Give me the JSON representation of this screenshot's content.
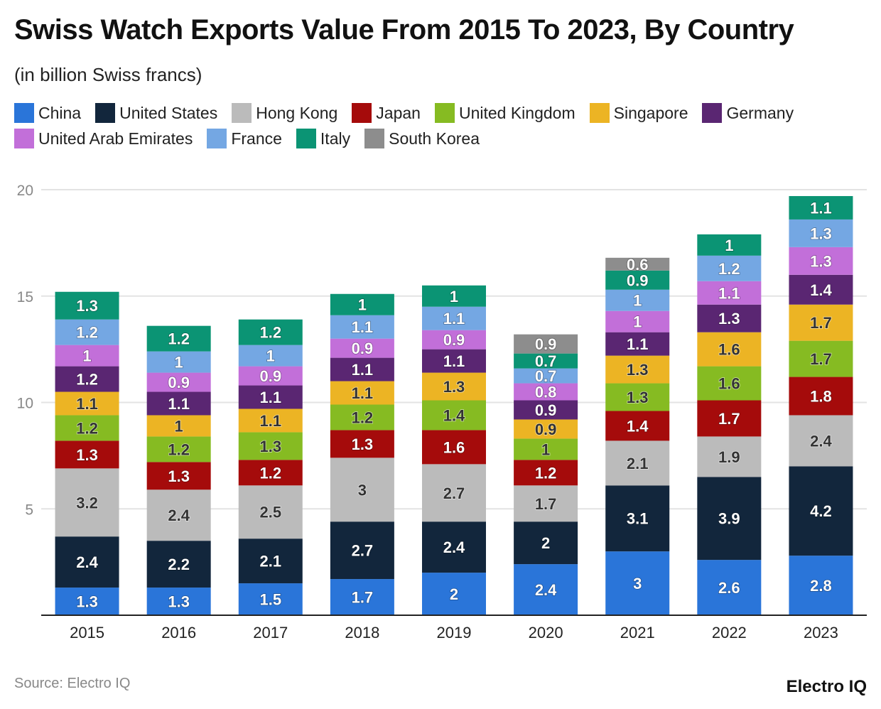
{
  "chart_data": {
    "type": "bar",
    "stacked": true,
    "title": "Swiss Watch Exports Value From 2015 To 2023, By Country",
    "subtitle": "(in billion Swiss francs)",
    "categories": [
      "2015",
      "2016",
      "2017",
      "2018",
      "2019",
      "2020",
      "2021",
      "2022",
      "2023"
    ],
    "ylim": [
      0,
      20
    ],
    "yticks": [
      5,
      10,
      15,
      20
    ],
    "grid": true,
    "legend_position": "top",
    "series": [
      {
        "name": "China",
        "color": "#2a75d9",
        "values": [
          1.3,
          1.3,
          1.5,
          1.7,
          2,
          2.4,
          3,
          2.6,
          2.8
        ]
      },
      {
        "name": "United States",
        "color": "#12263c",
        "values": [
          2.4,
          2.2,
          2.1,
          2.7,
          2.4,
          2,
          3.1,
          3.9,
          4.2
        ]
      },
      {
        "name": "Hong Kong",
        "color": "#bbbbbb",
        "values": [
          3.2,
          2.4,
          2.5,
          3,
          2.7,
          1.7,
          2.1,
          1.9,
          2.4
        ]
      },
      {
        "name": "Japan",
        "color": "#a50b0b",
        "values": [
          1.3,
          1.3,
          1.2,
          1.3,
          1.6,
          1.2,
          1.4,
          1.7,
          1.8
        ]
      },
      {
        "name": "United Kingdom",
        "color": "#86bb22",
        "values": [
          1.2,
          1.2,
          1.3,
          1.2,
          1.4,
          1,
          1.3,
          1.6,
          1.7
        ]
      },
      {
        "name": "Singapore",
        "color": "#ecb424",
        "values": [
          1.1,
          1,
          1.1,
          1.1,
          1.3,
          0.9,
          1.3,
          1.6,
          1.7
        ]
      },
      {
        "name": "Germany",
        "color": "#5a2672",
        "values": [
          1.2,
          1.1,
          1.1,
          1.1,
          1.1,
          0.9,
          1.1,
          1.3,
          1.4
        ]
      },
      {
        "name": "United Arab Emirates",
        "color": "#c26fd9",
        "values": [
          1,
          0.9,
          0.9,
          0.9,
          0.9,
          0.8,
          1,
          1.1,
          1.3
        ]
      },
      {
        "name": "France",
        "color": "#74a7e3",
        "values": [
          1.2,
          1,
          1,
          1.1,
          1.1,
          0.7,
          1,
          1.2,
          1.3
        ]
      },
      {
        "name": "Italy",
        "color": "#0b9474",
        "values": [
          1.3,
          1.2,
          1.2,
          1,
          1,
          0.7,
          0.9,
          1,
          1.1
        ]
      },
      {
        "name": "South Korea",
        "color": "#8d8d8d",
        "values": [
          null,
          null,
          null,
          null,
          null,
          0.9,
          0.6,
          null,
          null
        ]
      }
    ]
  },
  "source": "Source: Electro IQ",
  "logo": "Electro IQ"
}
